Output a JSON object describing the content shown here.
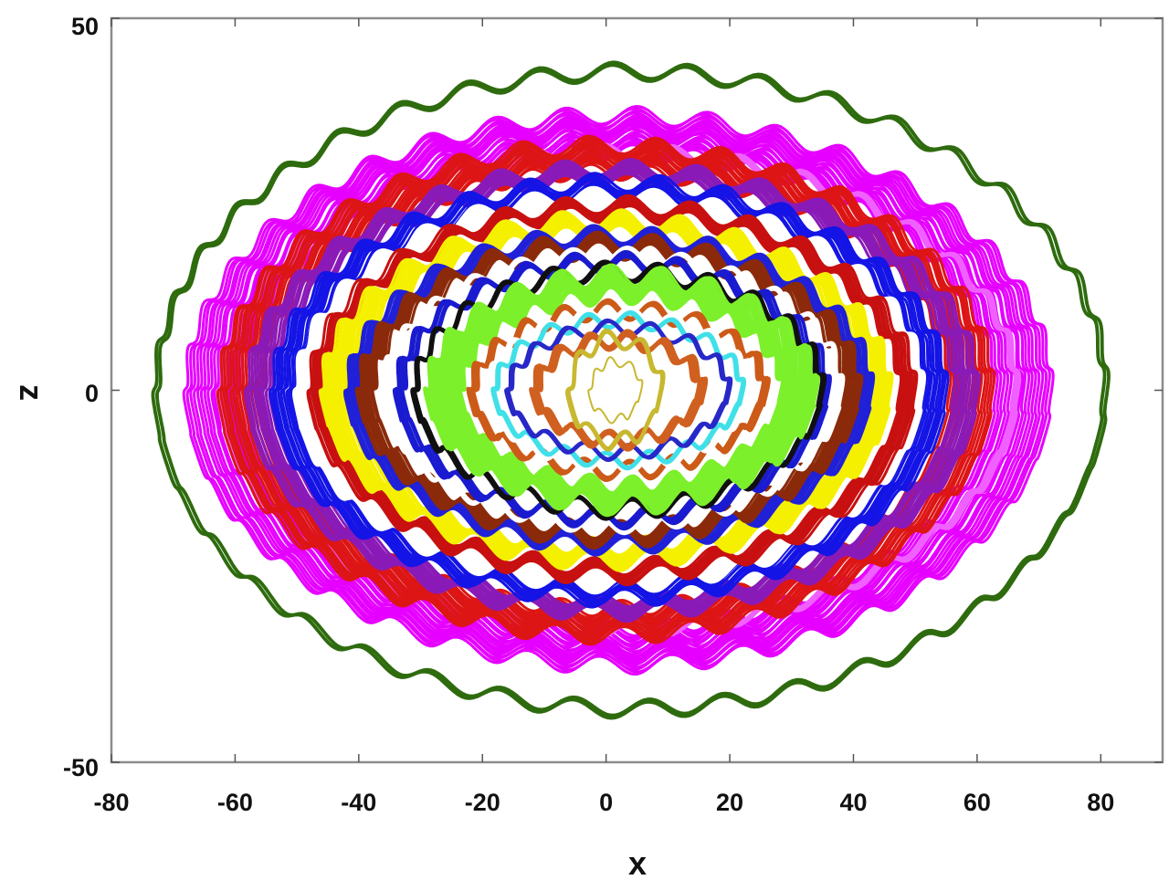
{
  "chart_data": {
    "type": "line",
    "title": "",
    "xlabel": "x",
    "ylabel": "z",
    "xlim": [
      -80,
      90
    ],
    "ylim": [
      -50,
      50
    ],
    "xticks": [
      -80,
      -60,
      -40,
      -20,
      0,
      20,
      40,
      60,
      80
    ],
    "yticks": [
      -50,
      0,
      50
    ],
    "grid": false,
    "legend": null,
    "description": "Nested wavy closed orbits (trajectories) in the x-z plane, colored by family; outer dark-green orbit, then magenta, red, purple, blue, yellow, brown, green, cyan, orange, with olive core near origin.",
    "series": [
      {
        "name": "orbit-darkgreen",
        "color": "#2e6b0e",
        "x_range": [
          -73,
          81
        ],
        "z_range": [
          -43,
          43
        ],
        "center_x": 4,
        "fill": false,
        "width": 1.2,
        "wave_amp": 1.1,
        "wave_count": 40
      },
      {
        "name": "orbit-magenta",
        "color": "#e600ff",
        "x_range": [
          -68,
          72
        ],
        "z_range": [
          -37,
          37
        ],
        "center_x": 2,
        "fill": true,
        "width": 6,
        "wave_amp": 1.2,
        "wave_count": 38
      },
      {
        "name": "orbit-magenta-thin",
        "color": "#f060ff",
        "x_range": [
          -63,
          66
        ],
        "z_range": [
          -32,
          32
        ],
        "center_x": 2,
        "fill": false,
        "width": 1.5,
        "wave_amp": 1.1,
        "wave_count": 36
      },
      {
        "name": "orbit-red",
        "color": "#dd1515",
        "x_range": [
          -63,
          62
        ],
        "z_range": [
          -33,
          33
        ],
        "center_x": 0,
        "fill": true,
        "width": 5,
        "wave_amp": 1.2,
        "wave_count": 36
      },
      {
        "name": "orbit-purple",
        "color": "#8a1ab8",
        "x_range": [
          -58,
          60
        ],
        "z_range": [
          -30,
          30
        ],
        "center_x": 1,
        "fill": true,
        "width": 3,
        "wave_amp": 1.1,
        "wave_count": 34
      },
      {
        "name": "orbit-blue",
        "color": "#1414e6",
        "x_range": [
          -54,
          55
        ],
        "z_range": [
          -28,
          28
        ],
        "center_x": 0.5,
        "fill": true,
        "width": 3,
        "wave_amp": 1.2,
        "wave_count": 32
      },
      {
        "name": "orbit-white-gap",
        "color": "#ffffff",
        "x_range": [
          -50,
          51
        ],
        "z_range": [
          -26,
          26
        ],
        "center_x": 0.5,
        "fill": false,
        "width": 2,
        "wave_amp": 1.1,
        "wave_count": 32
      },
      {
        "name": "orbit-red2",
        "color": "#c81010",
        "x_range": [
          -48,
          50
        ],
        "z_range": [
          -25,
          25
        ],
        "center_x": 1,
        "fill": true,
        "width": 2.5,
        "wave_amp": 1.2,
        "wave_count": 30
      },
      {
        "name": "orbit-yellow",
        "color": "#f5f000",
        "x_range": [
          -46,
          46
        ],
        "z_range": [
          -23,
          23
        ],
        "center_x": 0,
        "fill": true,
        "width": 4,
        "wave_amp": 1.3,
        "wave_count": 30
      },
      {
        "name": "orbit-blue2",
        "color": "#2020d8",
        "x_range": [
          -42,
          43
        ],
        "z_range": [
          -21,
          21
        ],
        "center_x": 0.5,
        "fill": true,
        "width": 2,
        "wave_amp": 1.2,
        "wave_count": 28
      },
      {
        "name": "orbit-brown",
        "color": "#8b2a0a",
        "x_range": [
          -40,
          41
        ],
        "z_range": [
          -20,
          20
        ],
        "center_x": 0.5,
        "fill": true,
        "width": 3,
        "wave_amp": 1.3,
        "wave_count": 28
      },
      {
        "name": "orbit-white-gap2",
        "color": "#ffffff",
        "x_range": [
          -36,
          38
        ],
        "z_range": [
          -18,
          18
        ],
        "center_x": 1,
        "fill": false,
        "width": 1.5,
        "wave_amp": 1.2,
        "wave_count": 26
      },
      {
        "name": "orbit-blue3",
        "color": "#1a1ad0",
        "x_range": [
          -34,
          36
        ],
        "z_range": [
          -17.5,
          17.5
        ],
        "center_x": 1,
        "fill": true,
        "width": 2,
        "wave_amp": 1.2,
        "wave_count": 26
      },
      {
        "name": "orbit-black",
        "color": "#101010",
        "x_range": [
          -31,
          35
        ],
        "z_range": [
          -16,
          16
        ],
        "center_x": 2,
        "fill": false,
        "width": 1.5,
        "wave_amp": 1.3,
        "wave_count": 24
      },
      {
        "name": "orbit-green",
        "color": "#7cf02a",
        "x_range": [
          -29,
          34
        ],
        "z_range": [
          -15.5,
          15.5
        ],
        "center_x": 2.5,
        "fill": true,
        "width": 8,
        "wave_amp": 1.4,
        "wave_count": 24
      },
      {
        "name": "orbit-orange-outer",
        "color": "#cc5a18",
        "x_range": [
          -22,
          26
        ],
        "z_range": [
          -11,
          11
        ],
        "center_x": 2,
        "fill": true,
        "width": 2,
        "wave_amp": 1.2,
        "wave_count": 20
      },
      {
        "name": "orbit-white-core",
        "color": "#ffffff",
        "x_range": [
          -19,
          23
        ],
        "z_range": [
          -10,
          10
        ],
        "center_x": 2,
        "fill": false,
        "width": 2,
        "wave_amp": 1.0,
        "wave_count": 18
      },
      {
        "name": "orbit-cyan",
        "color": "#40e0e8",
        "x_range": [
          -18,
          22
        ],
        "z_range": [
          -9.5,
          9.5
        ],
        "center_x": 2,
        "fill": false,
        "width": 1.5,
        "wave_amp": 1.0,
        "wave_count": 18
      },
      {
        "name": "orbit-blue-core",
        "color": "#2828c8",
        "x_range": [
          -16,
          20
        ],
        "z_range": [
          -8.5,
          8.5
        ],
        "center_x": 2,
        "fill": true,
        "width": 1.5,
        "wave_amp": 1.0,
        "wave_count": 16
      },
      {
        "name": "orbit-orange",
        "color": "#d06020",
        "x_range": [
          -12,
          16
        ],
        "z_range": [
          -7,
          7
        ],
        "center_x": 2,
        "fill": true,
        "width": 4,
        "wave_amp": 1.1,
        "wave_count": 14
      },
      {
        "name": "orbit-olive-core",
        "color": "#c8b830",
        "x_range": [
          -6,
          9
        ],
        "z_range": [
          -7,
          7
        ],
        "center_x": 1.5,
        "fill": true,
        "width": 2,
        "wave_amp": 1.2,
        "wave_count": 8
      }
    ]
  },
  "axes": {
    "x_tick_labels": [
      "-80",
      "-60",
      "-40",
      "-20",
      "0",
      "20",
      "40",
      "60",
      "80"
    ],
    "y_tick_labels": [
      "50",
      "0",
      "-50"
    ],
    "xlabel": "x",
    "ylabel": "z"
  },
  "colors": {
    "frame": "#8c8c8c",
    "background": "#ffffff"
  }
}
